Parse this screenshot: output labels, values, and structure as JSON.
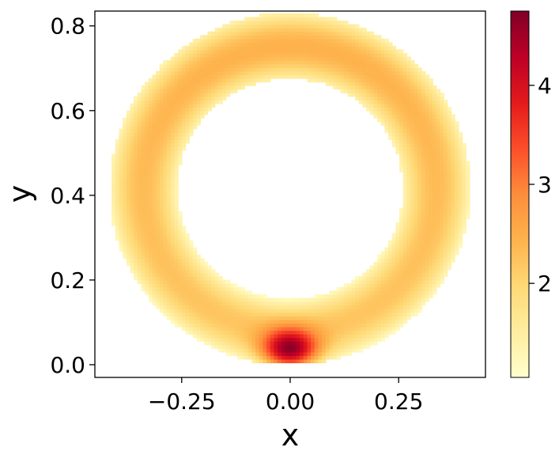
{
  "chart_data": {
    "type": "heatmap",
    "title": "",
    "xlabel": "x",
    "ylabel": "y",
    "xlim": [
      -0.45,
      0.45
    ],
    "ylim": [
      -0.03,
      0.835
    ],
    "x_ticks": [
      {
        "value": -0.25,
        "label": "−0.25"
      },
      {
        "value": 0.0,
        "label": "0.00"
      },
      {
        "value": 0.25,
        "label": "0.25"
      }
    ],
    "y_ticks": [
      {
        "value": 0.0,
        "label": "0.0"
      },
      {
        "value": 0.2,
        "label": "0.2"
      },
      {
        "value": 0.4,
        "label": "0.4"
      },
      {
        "value": 0.6,
        "label": "0.6"
      },
      {
        "value": 0.8,
        "label": "0.8"
      }
    ],
    "colormap": "YlOrRd",
    "colorbar": {
      "range": [
        1.05,
        4.75
      ],
      "ticks": [
        {
          "value": 2,
          "label": "2"
        },
        {
          "value": 3,
          "label": "3"
        },
        {
          "value": 4,
          "label": "4"
        }
      ]
    },
    "domain": {
      "shape": "annulus",
      "center": [
        0.0,
        0.415
      ],
      "inner_radius": 0.26,
      "outer_radius": 0.415
    },
    "hotspot": {
      "x": 0.0,
      "y": 0.035,
      "value": 4.75
    },
    "grid": false,
    "legend": "none"
  }
}
